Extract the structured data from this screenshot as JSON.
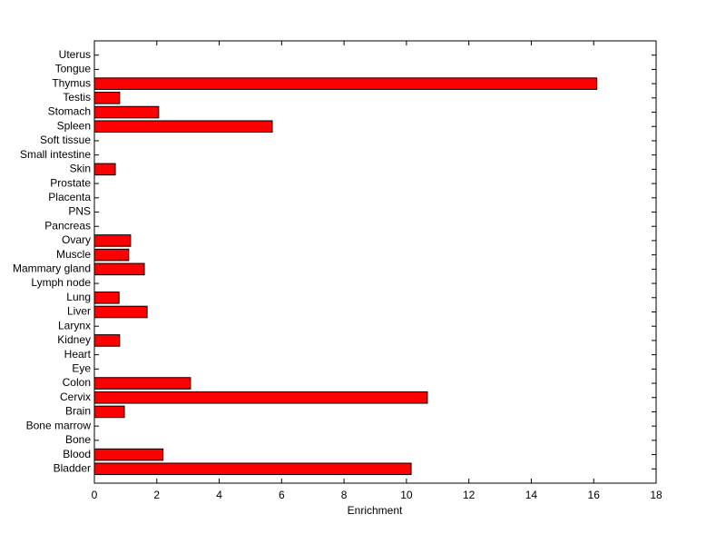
{
  "chart_data": {
    "type": "barh",
    "xlabel": "Enrichment",
    "categories": [
      "Bladder",
      "Blood",
      "Bone",
      "Bone marrow",
      "Brain",
      "Cervix",
      "Colon",
      "Eye",
      "Heart",
      "Kidney",
      "Larynx",
      "Liver",
      "Lung",
      "Lymph node",
      "Mammary gland",
      "Muscle",
      "Ovary",
      "Pancreas",
      "PNS",
      "Placenta",
      "Prostate",
      "Skin",
      "Small intestine",
      "Soft tissue",
      "Spleen",
      "Stomach",
      "Testis",
      "Thymus",
      "Tongue",
      "Uterus"
    ],
    "values": [
      10.15,
      2.2,
      0,
      0,
      0.96,
      10.67,
      3.08,
      0,
      0,
      0.81,
      0,
      1.69,
      0.79,
      0,
      1.6,
      1.1,
      1.16,
      0,
      0,
      0,
      0,
      0.67,
      0,
      0,
      5.7,
      2.06,
      0.81,
      16.1,
      0,
      0
    ],
    "color": "#ff0000",
    "xlim": [
      0,
      18
    ],
    "xticks": [
      0,
      2,
      4,
      6,
      8,
      10,
      12,
      14,
      16,
      18
    ]
  }
}
